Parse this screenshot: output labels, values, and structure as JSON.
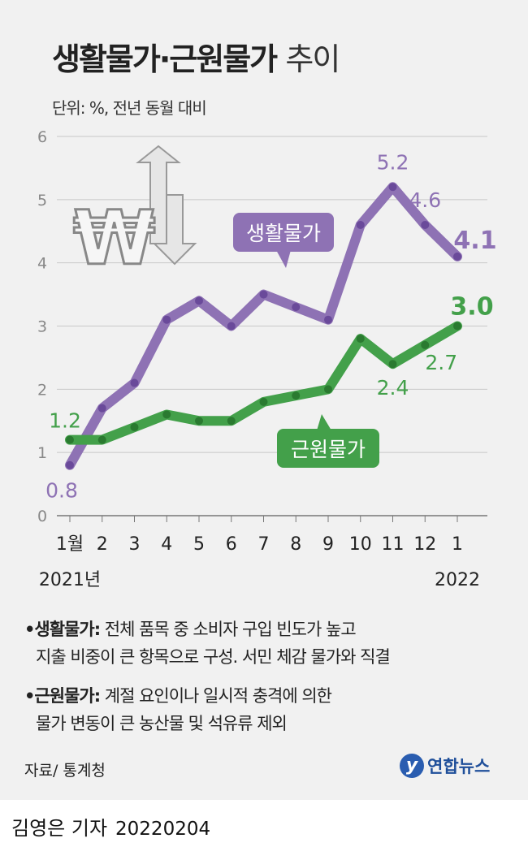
{
  "header": {
    "title_bold": "생활물가·근원물가",
    "title_light": "추이",
    "unit": "단위: %, 전년 동월 대비"
  },
  "chart_data": {
    "type": "line",
    "title": "생활물가·근원물가 추이",
    "ylabel": "단위: %, 전년 동월 대비",
    "categories": [
      "1월",
      "2",
      "3",
      "4",
      "5",
      "6",
      "7",
      "8",
      "9",
      "10",
      "11",
      "12",
      "1"
    ],
    "year_labels": {
      "start": "2021년",
      "end": "2022"
    },
    "ylim": [
      0,
      6
    ],
    "yticks": [
      "0",
      "1",
      "2",
      "3",
      "4",
      "5",
      "6"
    ],
    "grid": true,
    "series": [
      {
        "name": "생활물가",
        "color": "#8e72b4",
        "dot_color": "#6a4a9a",
        "values": [
          0.8,
          1.7,
          2.1,
          3.1,
          3.4,
          3.0,
          3.5,
          3.3,
          3.1,
          4.6,
          5.2,
          4.6,
          4.1
        ],
        "labels": [
          {
            "index": 0,
            "text": "0.8"
          },
          {
            "index": 10,
            "text": "5.2"
          },
          {
            "index": 11,
            "text": "4.6"
          },
          {
            "index": 12,
            "text": "4.1"
          }
        ]
      },
      {
        "name": "근원물가",
        "color": "#43a04a",
        "dot_color": "#2a7a30",
        "values": [
          1.2,
          1.2,
          1.4,
          1.6,
          1.5,
          1.5,
          1.8,
          1.9,
          2.0,
          2.8,
          2.4,
          2.7,
          3.0
        ],
        "labels": [
          {
            "index": 0,
            "text": "1.2"
          },
          {
            "index": 10,
            "text": "2.4"
          },
          {
            "index": 11,
            "text": "2.7"
          },
          {
            "index": 12,
            "text": "3.0"
          }
        ]
      }
    ]
  },
  "notes": [
    {
      "term": "•생활물가:",
      "line1": " 전체 품목 중 소비자 구입 빈도가 높고",
      "line2": "지출 비중이 큰 항목으로 구성. 서민 체감 물가와 직결"
    },
    {
      "term": "•근원물가:",
      "line1": " 계절 요인이나 일시적 충격에 의한",
      "line2": "물가 변동이 큰 농산물 및 석유류 제외"
    }
  ],
  "footer": {
    "source": "자료/ 통계청",
    "logo_text": "연합뉴스",
    "byline": "김영은 기자",
    "date": "20220204"
  }
}
